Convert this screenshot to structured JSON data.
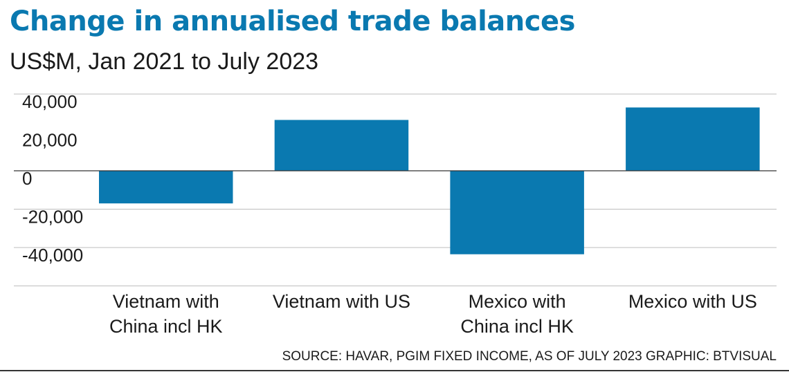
{
  "header": {
    "title": "Change in annualised trade balances",
    "subtitle": "US$M, Jan 2021 to July 2023"
  },
  "footer": {
    "source": "SOURCE: HAVAR, PGIM FIXED INCOME, AS OF JULY 2023  GRAPHIC: BTVISUAL"
  },
  "colors": {
    "bar": "#0a79b0",
    "title": "#0a79b0",
    "grid": "#bdbdbd",
    "zero_line": "#333333"
  },
  "chart_data": {
    "type": "bar",
    "title": "Change in annualised trade balances",
    "subtitle": "US$M, Jan 2021 to July 2023",
    "categories": [
      [
        "Vietnam with",
        "China incl HK"
      ],
      [
        "Vietnam with US"
      ],
      [
        "Mexico with",
        "China incl HK"
      ],
      [
        "Mexico with US"
      ]
    ],
    "values": [
      -17000,
      26500,
      -43500,
      33000
    ],
    "yticks": [
      40000,
      20000,
      0,
      -20000,
      -40000
    ],
    "ytick_labels": [
      "40,000",
      "20,000",
      "0",
      "-20,000",
      "-40,000"
    ],
    "ylim": [
      -60000,
      40000
    ],
    "grid": true,
    "legend": "none"
  }
}
